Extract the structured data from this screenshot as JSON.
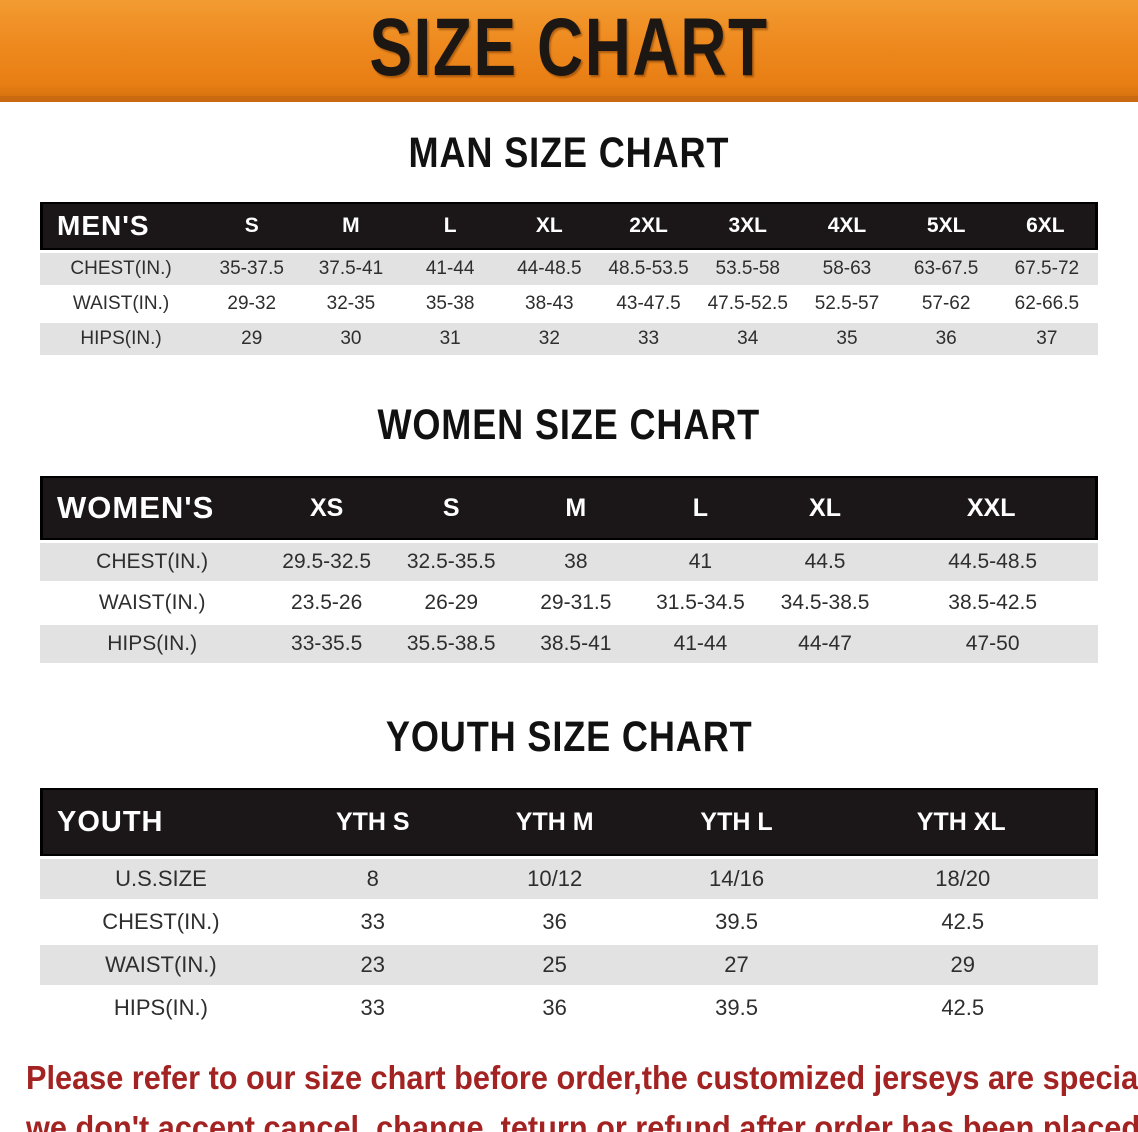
{
  "banner": {
    "title": "SIZE CHART"
  },
  "colors": {
    "banner_orange": "#ee8a1f",
    "table_header_black": "#1b1718",
    "row_gray": "#e3e2e2",
    "disclaimer_red": "#a32323"
  },
  "tables": {
    "men": {
      "heading": "MAN SIZE CHART",
      "header": [
        "MEN'S",
        "S",
        "M",
        "L",
        "XL",
        "2XL",
        "3XL",
        "4XL",
        "5XL",
        "6XL"
      ],
      "rows": [
        [
          "CHEST(IN.)",
          "35-37.5",
          "37.5-41",
          "41-44",
          "44-48.5",
          "48.5-53.5",
          "53.5-58",
          "58-63",
          "63-67.5",
          "67.5-72"
        ],
        [
          "WAIST(IN.)",
          "29-32",
          "32-35",
          "35-38",
          "38-43",
          "43-47.5",
          "47.5-52.5",
          "52.5-57",
          "57-62",
          "62-66.5"
        ],
        [
          "HIPS(IN.)",
          "29",
          "30",
          "31",
          "32",
          "33",
          "34",
          "35",
          "36",
          "37"
        ]
      ]
    },
    "women": {
      "heading": "WOMEN SIZE CHART",
      "header": [
        "WOMEN'S",
        "XS",
        "S",
        "M",
        "L",
        "XL",
        "XXL"
      ],
      "rows": [
        [
          "CHEST(IN.)",
          "29.5-32.5",
          "32.5-35.5",
          "38",
          "41",
          "44.5",
          "44.5-48.5"
        ],
        [
          "WAIST(IN.)",
          "23.5-26",
          "26-29",
          "29-31.5",
          "31.5-34.5",
          "34.5-38.5",
          "38.5-42.5"
        ],
        [
          "HIPS(IN.)",
          "33-35.5",
          "35.5-38.5",
          "38.5-41",
          "41-44",
          "44-47",
          "47-50"
        ]
      ]
    },
    "youth": {
      "heading": "YOUTH SIZE CHART",
      "header": [
        "YOUTH",
        "YTH S",
        "YTH M",
        "YTH L",
        "YTH XL"
      ],
      "rows": [
        [
          "U.S.SIZE",
          "8",
          "10/12",
          "14/16",
          "18/20"
        ],
        [
          "CHEST(IN.)",
          "33",
          "36",
          "39.5",
          "42.5"
        ],
        [
          "WAIST(IN.)",
          "23",
          "25",
          "27",
          "29"
        ],
        [
          "HIPS(IN.)",
          "33",
          "36",
          "39.5",
          "42.5"
        ]
      ]
    }
  },
  "disclaimer": {
    "line1": "Please refer to our size chart before order,the customized jerseys are special products,",
    "line2": "we don't accept cancel, change, teturn or refund after order has been placed!"
  }
}
